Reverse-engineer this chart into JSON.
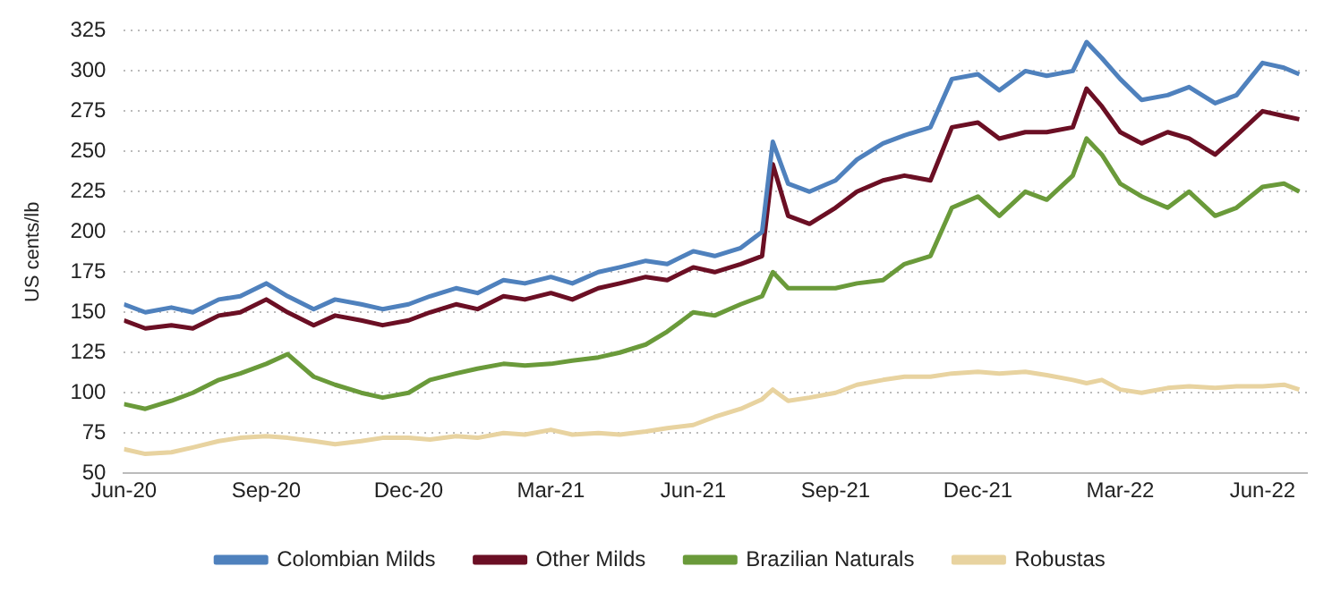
{
  "chart_data": {
    "type": "line",
    "ylabel": "US cents/lb",
    "x": [
      "2020-06-01",
      "2020-06-15",
      "2020-07-01",
      "2020-07-15",
      "2020-08-01",
      "2020-08-15",
      "2020-09-01",
      "2020-09-15",
      "2020-10-01",
      "2020-10-15",
      "2020-11-01",
      "2020-11-15",
      "2020-12-01",
      "2020-12-15",
      "2021-01-01",
      "2021-01-15",
      "2021-02-01",
      "2021-02-15",
      "2021-03-01",
      "2021-03-15",
      "2021-04-01",
      "2021-04-15",
      "2021-05-01",
      "2021-05-15",
      "2021-06-01",
      "2021-06-15",
      "2021-07-01",
      "2021-07-15",
      "2021-07-22",
      "2021-08-01",
      "2021-08-15",
      "2021-09-01",
      "2021-09-15",
      "2021-10-01",
      "2021-10-15",
      "2021-11-01",
      "2021-11-15",
      "2021-12-01",
      "2021-12-15",
      "2022-01-01",
      "2022-01-15",
      "2022-02-01",
      "2022-02-10",
      "2022-02-20",
      "2022-03-01",
      "2022-03-15",
      "2022-04-01",
      "2022-04-15",
      "2022-05-01",
      "2022-05-15",
      "2022-06-01",
      "2022-06-15",
      "2022-06-25"
    ],
    "series": [
      {
        "name": "Colombian Milds",
        "color": "#4f81bd",
        "values": [
          155,
          150,
          153,
          150,
          158,
          160,
          168,
          160,
          152,
          158,
          155,
          152,
          155,
          160,
          165,
          162,
          170,
          168,
          172,
          168,
          175,
          178,
          182,
          180,
          188,
          185,
          190,
          200,
          256,
          230,
          225,
          232,
          245,
          255,
          260,
          265,
          295,
          298,
          288,
          300,
          297,
          300,
          318,
          308,
          295,
          282,
          285,
          290,
          280,
          285,
          305,
          302,
          298
        ]
      },
      {
        "name": "Other Milds",
        "color": "#6b0f24",
        "values": [
          145,
          140,
          142,
          140,
          148,
          150,
          158,
          150,
          142,
          148,
          145,
          142,
          145,
          150,
          155,
          152,
          160,
          158,
          162,
          158,
          165,
          168,
          172,
          170,
          178,
          175,
          180,
          185,
          242,
          210,
          205,
          215,
          225,
          232,
          235,
          232,
          265,
          268,
          258,
          262,
          262,
          265,
          289,
          278,
          262,
          255,
          262,
          258,
          248,
          260,
          275,
          272,
          270
        ]
      },
      {
        "name": "Brazilian Naturals",
        "color": "#6a9a3a",
        "values": [
          93,
          90,
          95,
          100,
          108,
          112,
          118,
          124,
          110,
          105,
          100,
          97,
          100,
          108,
          112,
          115,
          118,
          117,
          118,
          120,
          122,
          125,
          130,
          138,
          150,
          148,
          155,
          160,
          175,
          165,
          165,
          165,
          168,
          170,
          180,
          185,
          215,
          222,
          210,
          225,
          220,
          235,
          258,
          248,
          230,
          222,
          215,
          225,
          210,
          215,
          228,
          230,
          225
        ]
      },
      {
        "name": "Robustas",
        "color": "#e8d3a0",
        "values": [
          65,
          62,
          63,
          66,
          70,
          72,
          73,
          72,
          70,
          68,
          70,
          72,
          72,
          71,
          73,
          72,
          75,
          74,
          77,
          74,
          75,
          74,
          76,
          78,
          80,
          85,
          90,
          96,
          102,
          95,
          97,
          100,
          105,
          108,
          110,
          110,
          112,
          113,
          112,
          113,
          111,
          108,
          106,
          108,
          102,
          100,
          103,
          104,
          103,
          104,
          104,
          105,
          102
        ]
      }
    ],
    "xlim": [
      "2020-06-01",
      "2022-06-30"
    ],
    "xticks": [
      {
        "value": "2020-06",
        "label": "Jun-20"
      },
      {
        "value": "2020-09",
        "label": "Sep-20"
      },
      {
        "value": "2020-12",
        "label": "Dec-20"
      },
      {
        "value": "2021-03",
        "label": "Mar-21"
      },
      {
        "value": "2021-06",
        "label": "Jun-21"
      },
      {
        "value": "2021-09",
        "label": "Sep-21"
      },
      {
        "value": "2021-12",
        "label": "Dec-21"
      },
      {
        "value": "2022-03",
        "label": "Mar-22"
      },
      {
        "value": "2022-06",
        "label": "Jun-22"
      }
    ],
    "ylim": [
      50,
      325
    ],
    "yticks": [
      50,
      75,
      100,
      125,
      150,
      175,
      200,
      225,
      250,
      275,
      300,
      325
    ],
    "grid": "y",
    "legend": "bottom",
    "marker": "none",
    "line_style": "solid"
  }
}
